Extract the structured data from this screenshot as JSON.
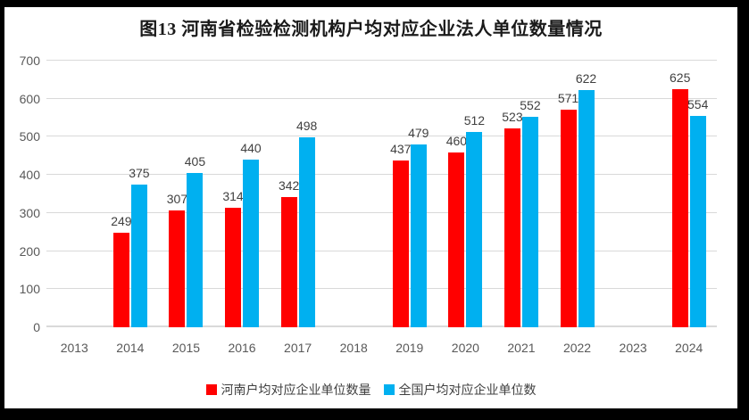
{
  "title": "图13 河南省检验检测机构户均对应企业法人单位数量情况",
  "chart_data": {
    "type": "bar",
    "categories": [
      "2013",
      "2014",
      "2015",
      "2016",
      "2017",
      "2018",
      "2019",
      "2020",
      "2021",
      "2022",
      "2023",
      "2024"
    ],
    "series": [
      {
        "name": "河南户均对应企业单位数量",
        "key": "henan",
        "color": "#FF0000",
        "values": [
          null,
          249,
          307,
          314,
          342,
          null,
          437,
          460,
          523,
          571,
          null,
          625
        ]
      },
      {
        "name": "全国户均对应企业单位数",
        "key": "national",
        "color": "#00B0F0",
        "values": [
          null,
          375,
          405,
          440,
          498,
          null,
          479,
          512,
          552,
          622,
          null,
          554
        ]
      }
    ],
    "title": "图13 河南省检验检测机构户均对应企业法人单位数量情况",
    "xlabel": "",
    "ylabel": "",
    "ylim": [
      0,
      700
    ],
    "yticks": [
      0,
      100,
      200,
      300,
      400,
      500,
      600,
      700
    ],
    "grid": true,
    "legend_position": "bottom",
    "data_labels": true
  },
  "colors": {
    "bar_red": "#FF0000",
    "bar_blue": "#00B0F0",
    "gridline": "#d9d9d9",
    "axis_text": "#595959",
    "data_label_text": "#404040",
    "frame": "#000000",
    "background": "#ffffff"
  }
}
